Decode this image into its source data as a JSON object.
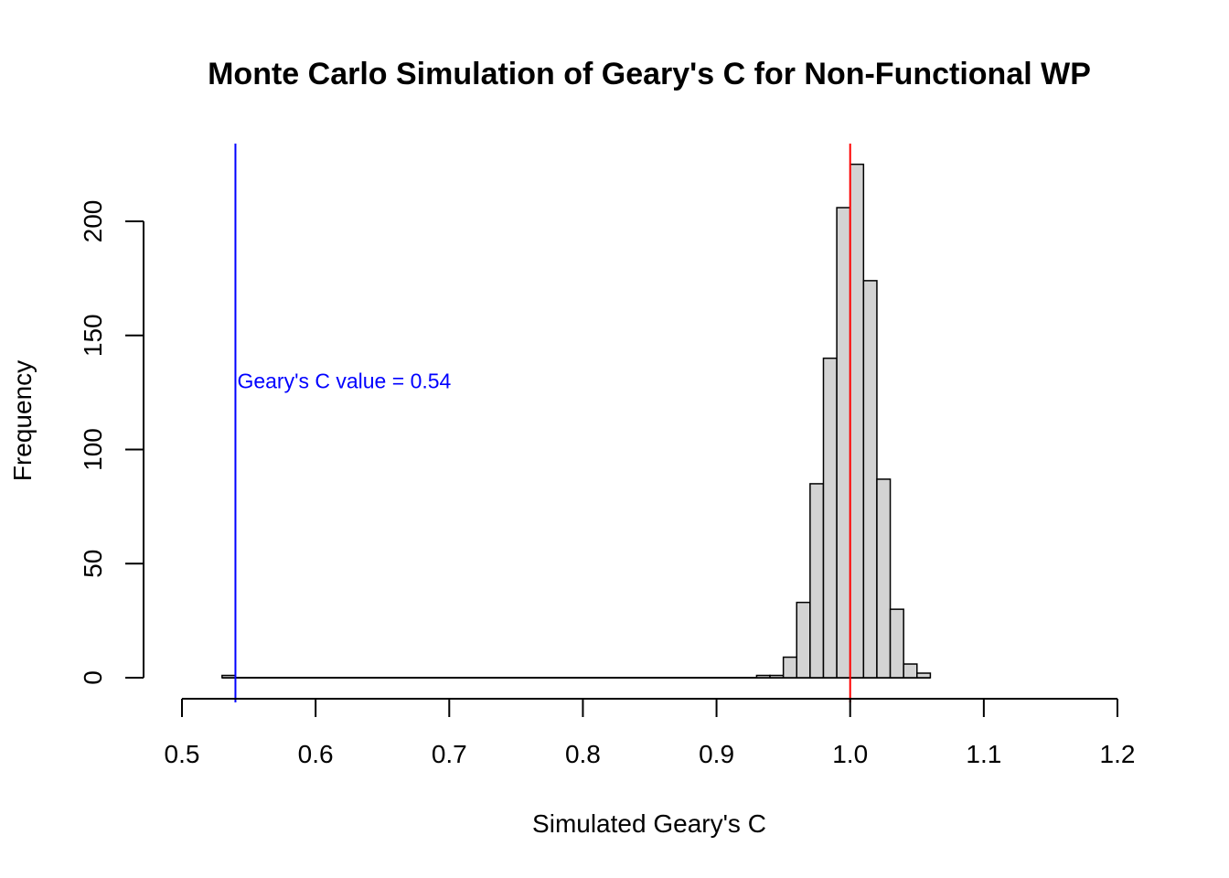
{
  "chart_data": {
    "type": "bar",
    "title": "Monte Carlo Simulation of Geary's C for Non-Functional WP",
    "xlabel": "Simulated Geary's C",
    "ylabel": "Frequency",
    "xlim": [
      0.5,
      1.2
    ],
    "ylim": [
      0,
      225
    ],
    "x_ticks": [
      "0.5",
      "0.6",
      "0.7",
      "0.8",
      "0.9",
      "1.0",
      "1.1",
      "1.2"
    ],
    "x_tick_values": [
      0.5,
      0.6,
      0.7,
      0.8,
      0.9,
      1.0,
      1.1,
      1.2
    ],
    "y_ticks": [
      "0",
      "50",
      "100",
      "150",
      "200"
    ],
    "y_tick_values": [
      0,
      50,
      100,
      150,
      200
    ],
    "bin_width": 0.01,
    "bins_start": [
      0.53,
      0.93,
      0.94,
      0.95,
      0.96,
      0.97,
      0.98,
      0.99,
      1.0,
      1.01,
      1.02,
      1.03,
      1.04,
      1.05
    ],
    "values": [
      1,
      1,
      1,
      9,
      33,
      85,
      140,
      206,
      225,
      174,
      87,
      30,
      6,
      2
    ],
    "bar_fill": "#d3d3d3",
    "bar_stroke": "#000000",
    "vlines": [
      {
        "x": 0.54,
        "color": "#0000ff"
      },
      {
        "x": 1.0,
        "color": "#ff0000"
      }
    ],
    "annotation": {
      "text": "Geary's C value = 0.54",
      "x": 0.54,
      "y": 130,
      "color": "#0000ff"
    },
    "grid": false,
    "legend": "none"
  }
}
